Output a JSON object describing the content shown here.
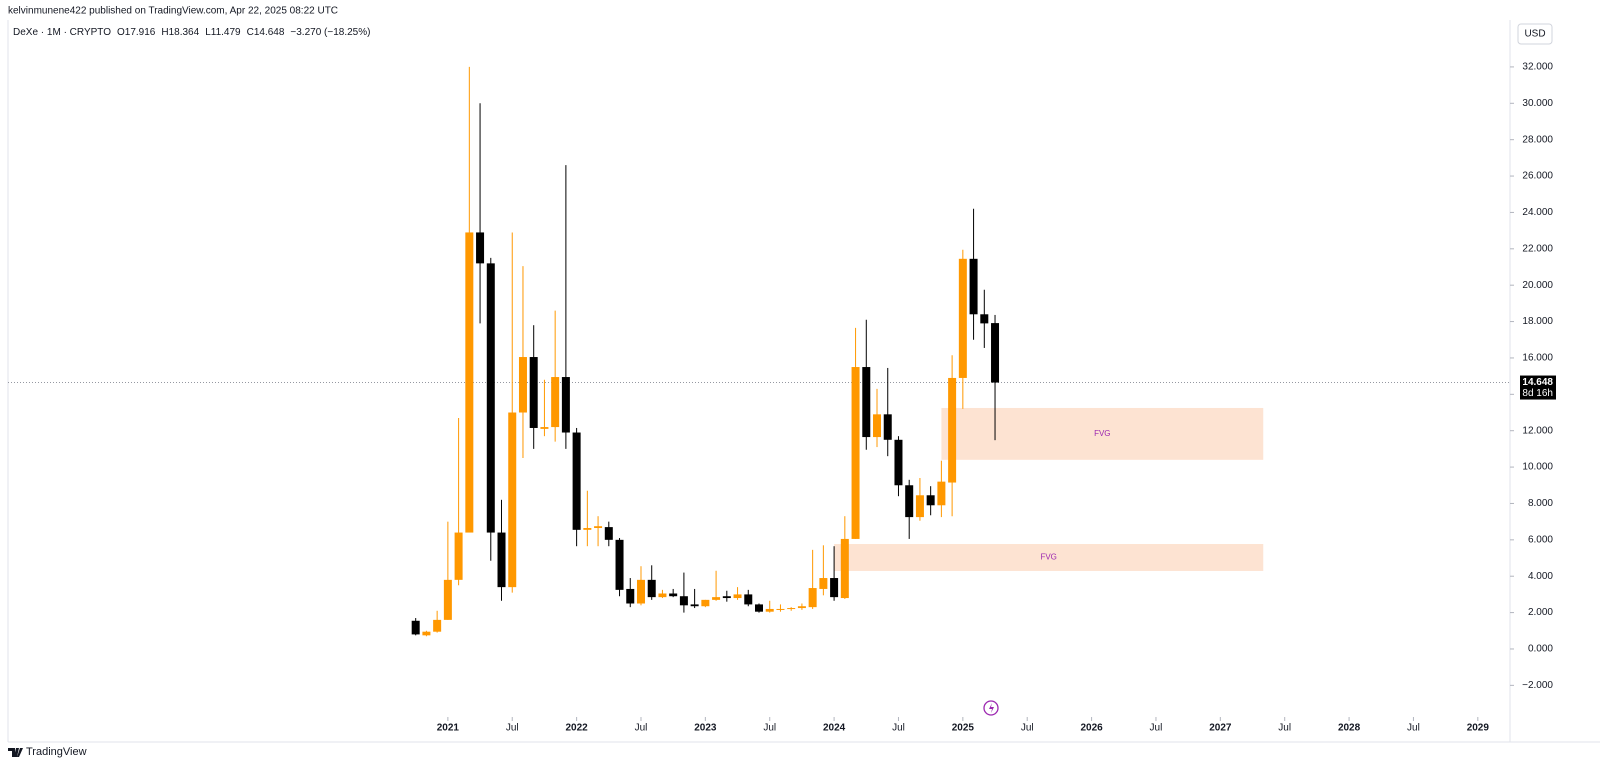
{
  "header": {
    "publisher": "kelvinmunene422 published on TradingView.com, Apr 22, 2025 08:22 UTC",
    "currency": "USD"
  },
  "footer": {
    "brand": "TradingView"
  },
  "chart_data": {
    "type": "candlestick",
    "legend": {
      "symbol": "DeXe · 1M · CRYPTO",
      "items": [
        "O17.916",
        "H18.364",
        "L11.479",
        "C14.648",
        "−3.270 (−18.25%)"
      ]
    },
    "x": [
      "2020-10",
      "2020-11",
      "2020-12",
      "2021-01",
      "2021-02",
      "2021-03",
      "2021-04",
      "2021-05",
      "2021-06",
      "2021-07",
      "2021-08",
      "2021-09",
      "2021-10",
      "2021-11",
      "2021-12",
      "2022-01",
      "2022-02",
      "2022-03",
      "2022-04",
      "2022-05",
      "2022-06",
      "2022-07",
      "2022-08",
      "2022-09",
      "2022-10",
      "2022-11",
      "2022-12",
      "2023-01",
      "2023-02",
      "2023-03",
      "2023-04",
      "2023-05",
      "2023-06",
      "2023-07",
      "2023-08",
      "2023-09",
      "2023-10",
      "2023-11",
      "2023-12",
      "2024-01",
      "2024-02",
      "2024-03",
      "2024-04",
      "2024-05",
      "2024-06",
      "2024-07",
      "2024-08",
      "2024-09",
      "2024-10",
      "2024-11",
      "2024-12",
      "2025-01",
      "2025-02",
      "2025-03",
      "2025-04"
    ],
    "open": [
      1.55,
      0.75,
      0.95,
      1.6,
      3.8,
      6.4,
      22.9,
      21.2,
      6.4,
      3.4,
      13.0,
      16.05,
      12.1,
      12.2,
      14.95,
      11.9,
      6.55,
      6.65,
      6.7,
      6.0,
      3.3,
      2.5,
      3.8,
      2.85,
      3.05,
      2.9,
      2.45,
      2.35,
      2.7,
      2.9,
      2.8,
      3.0,
      2.45,
      2.05,
      2.15,
      2.2,
      2.25,
      2.3,
      3.3,
      3.9,
      2.8,
      6.05,
      15.5,
      11.65,
      12.9,
      11.5,
      9.0,
      7.25,
      8.45,
      7.9,
      9.15,
      14.9,
      21.45,
      18.4,
      17.916
    ],
    "high": [
      1.7,
      1.0,
      2.1,
      7.0,
      12.7,
      32.0,
      30.0,
      21.5,
      8.2,
      22.9,
      21.05,
      17.8,
      14.8,
      18.6,
      26.6,
      12.15,
      8.7,
      7.3,
      7.0,
      6.1,
      3.9,
      4.55,
      4.6,
      3.25,
      3.3,
      4.2,
      3.3,
      2.7,
      4.3,
      3.2,
      3.4,
      3.25,
      2.5,
      2.65,
      2.45,
      2.3,
      2.5,
      5.45,
      5.7,
      5.65,
      7.3,
      17.65,
      18.1,
      14.3,
      15.45,
      11.7,
      9.3,
      9.4,
      8.95,
      10.35,
      16.15,
      21.95,
      24.2,
      19.75,
      18.364
    ],
    "low": [
      0.75,
      0.7,
      0.9,
      1.6,
      3.5,
      6.4,
      17.9,
      4.85,
      2.65,
      3.1,
      10.5,
      11.0,
      11.7,
      11.4,
      11.0,
      5.65,
      5.65,
      5.65,
      5.65,
      2.9,
      2.3,
      2.4,
      2.7,
      2.8,
      2.85,
      2.0,
      2.25,
      2.3,
      2.65,
      2.6,
      2.7,
      2.35,
      2.0,
      2.0,
      2.05,
      2.1,
      2.15,
      2.2,
      2.95,
      2.65,
      2.75,
      6.05,
      10.95,
      11.1,
      10.6,
      8.4,
      6.05,
      7.05,
      7.35,
      7.25,
      7.3,
      13.2,
      17.0,
      16.55,
      11.479
    ],
    "close": [
      0.8,
      0.95,
      1.6,
      3.8,
      6.4,
      22.9,
      21.2,
      6.4,
      3.4,
      13.0,
      16.05,
      12.15,
      12.2,
      14.95,
      11.9,
      6.55,
      6.65,
      6.75,
      6.0,
      3.25,
      2.5,
      3.8,
      2.85,
      3.05,
      2.9,
      2.4,
      2.35,
      2.7,
      2.85,
      2.8,
      3.0,
      2.45,
      2.05,
      2.2,
      2.2,
      2.25,
      2.35,
      3.35,
      3.9,
      2.85,
      6.05,
      15.5,
      11.65,
      12.9,
      11.5,
      9.0,
      7.25,
      8.45,
      7.9,
      9.2,
      14.9,
      21.45,
      18.4,
      17.9,
      14.648
    ],
    "up_color": "#ff9800",
    "down_color": "#000000",
    "xlim": [
      "2017-08",
      "2029-04"
    ],
    "xticks": [
      {
        "value": "2021-01",
        "label": "2021"
      },
      {
        "value": "2021-07",
        "label": "Jul"
      },
      {
        "value": "2022-01",
        "label": "2022"
      },
      {
        "value": "2022-07",
        "label": "Jul"
      },
      {
        "value": "2023-01",
        "label": "2023"
      },
      {
        "value": "2023-07",
        "label": "Jul"
      },
      {
        "value": "2024-01",
        "label": "2024"
      },
      {
        "value": "2024-07",
        "label": "Jul"
      },
      {
        "value": "2025-01",
        "label": "2025"
      },
      {
        "value": "2025-07",
        "label": "Jul"
      },
      {
        "value": "2026-01",
        "label": "2026"
      },
      {
        "value": "2026-07",
        "label": "Jul"
      },
      {
        "value": "2027-01",
        "label": "2027"
      },
      {
        "value": "2027-07",
        "label": "Jul"
      },
      {
        "value": "2028-01",
        "label": "2028"
      },
      {
        "value": "2028-07",
        "label": "Jul"
      },
      {
        "value": "2029-01",
        "label": "2029"
      }
    ],
    "ylim": [
      -3.74,
      33.15
    ],
    "yticks": [
      {
        "value": -2,
        "label": "−2.000"
      },
      {
        "value": 0,
        "label": "0.000"
      },
      {
        "value": 2,
        "label": "2.000"
      },
      {
        "value": 4,
        "label": "4.000"
      },
      {
        "value": 6,
        "label": "6.000"
      },
      {
        "value": 8,
        "label": "8.000"
      },
      {
        "value": 10,
        "label": "10.000"
      },
      {
        "value": 12,
        "label": "12.000"
      },
      {
        "value": 14,
        "label": "14.000"
      },
      {
        "value": 16,
        "label": "16.000"
      },
      {
        "value": 18,
        "label": "18.000"
      },
      {
        "value": 20,
        "label": "20.000"
      },
      {
        "value": 22,
        "label": "22.000"
      },
      {
        "value": 24,
        "label": "24.000"
      },
      {
        "value": 26,
        "label": "26.000"
      },
      {
        "value": 28,
        "label": "28.000"
      },
      {
        "value": 30,
        "label": "30.000"
      },
      {
        "value": 32,
        "label": "32.000"
      }
    ],
    "last_price": {
      "value": 14.648,
      "label": "14.648",
      "countdown": "8d 16h"
    },
    "zones": [
      {
        "label": "FVG",
        "top": 13.25,
        "bottom": 10.4,
        "start": "2024-11",
        "end": "2027-05",
        "color": "#fde3d2"
      },
      {
        "label": "FVG",
        "top": 5.77,
        "bottom": 4.29,
        "start": "2024-01",
        "end": "2027-05",
        "color": "#fde3d2"
      }
    ]
  }
}
